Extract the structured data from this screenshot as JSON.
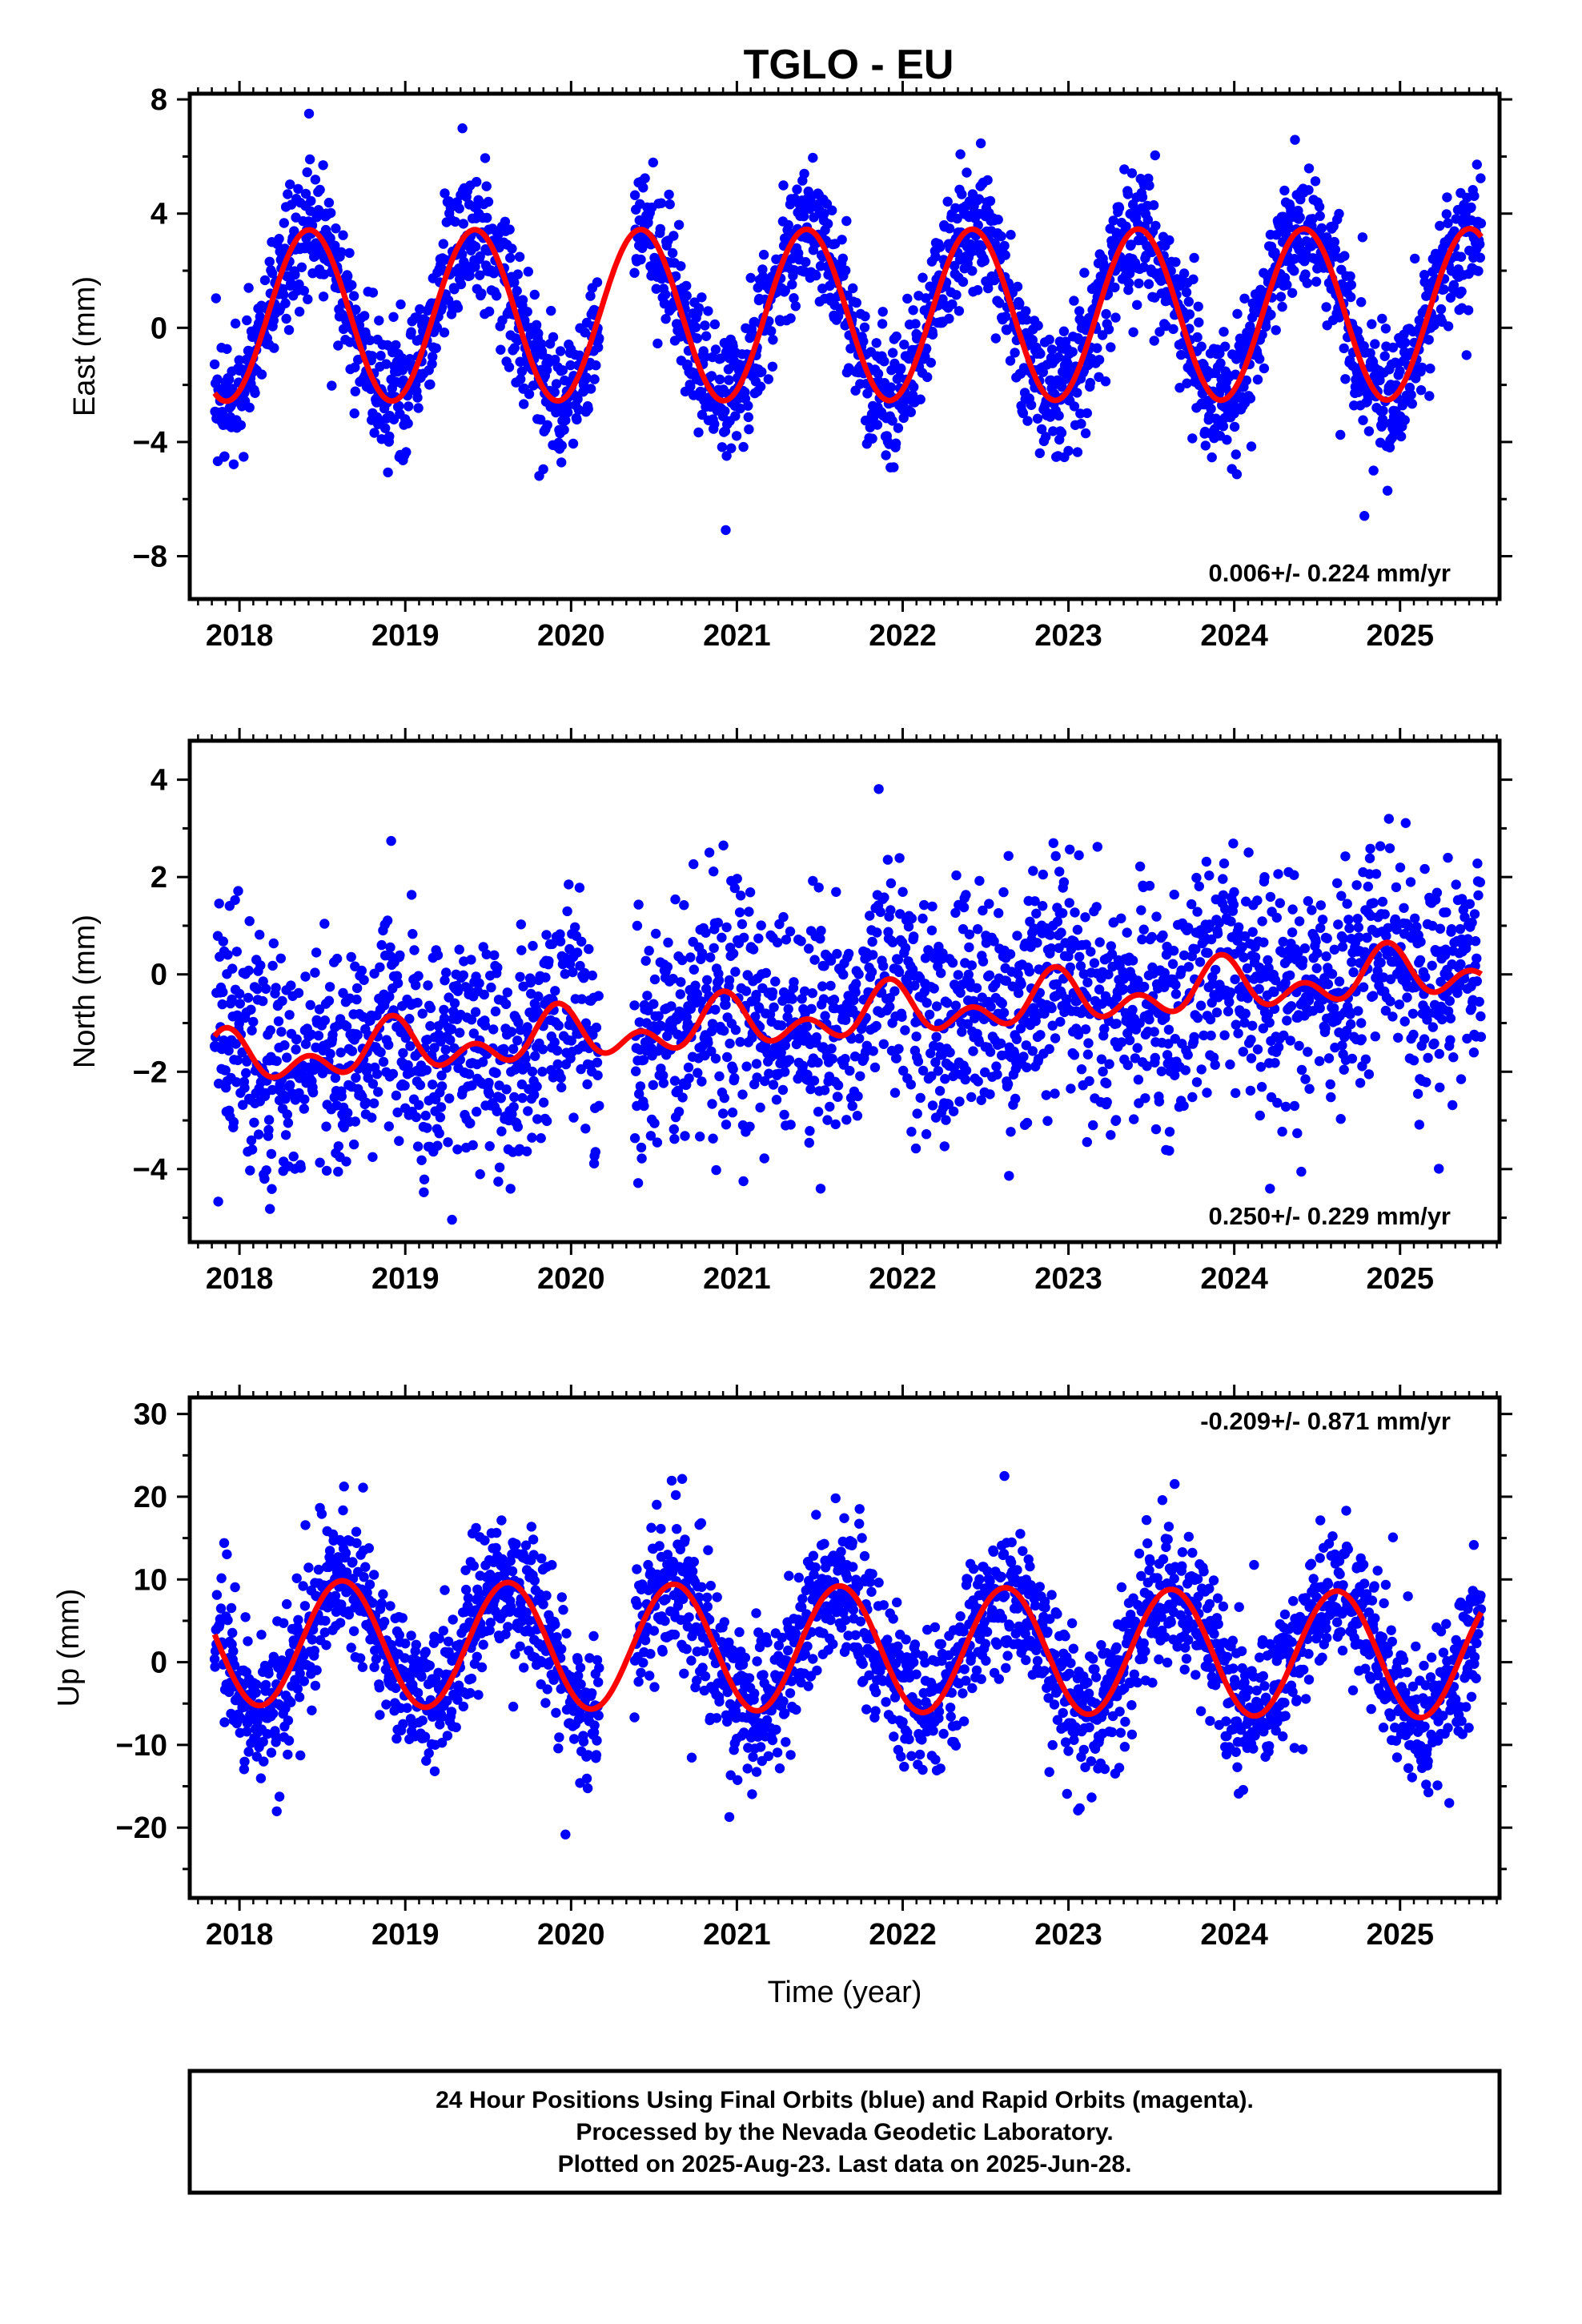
{
  "figure": {
    "title": "TGLO - EU",
    "caption_lines": [
      "24 Hour Positions Using Final Orbits (blue) and Rapid Orbits (magenta).",
      "Processed by the Nevada Geodetic Laboratory.",
      "Plotted on 2025-Aug-23. Last data on 2025-Jun-28."
    ]
  },
  "colors": {
    "final_orbits": "#0000ff",
    "rapid_orbits": "#ff00ff",
    "model_fit": "#ff0000",
    "frame": "#000000"
  },
  "chart_data": [
    {
      "type": "scatter",
      "component": "east",
      "title": "",
      "xlabel": "",
      "ylabel": "East (mm)",
      "xlim": [
        2017.7,
        2025.6
      ],
      "ylim": [
        -9.5,
        8.2
      ],
      "xticks": [
        2018,
        2019,
        2020,
        2021,
        2022,
        2023,
        2024,
        2025
      ],
      "yticks": [
        -8,
        -4,
        0,
        4,
        8
      ],
      "rate_annotation": "0.006+/- 0.224 mm/yr",
      "rate_position": "bottom-right",
      "data_span": [
        2017.85,
        2025.49
      ],
      "model": {
        "offset": 0.45,
        "rate": 0.006,
        "annual_amplitude": 3.0,
        "annual_peak": 2018.42,
        "semiannual_amplitude": 0.0,
        "semiannual_peak": 2018.0
      },
      "scatter_sd": 1.15,
      "series": [
        {
          "name": "",
          "kind": "points",
          "color": "#0000ff"
        },
        {
          "name": "",
          "kind": "model",
          "color": "#ff0000"
        }
      ]
    },
    {
      "type": "scatter",
      "component": "north",
      "title": "",
      "xlabel": "",
      "ylabel": "North (mm)",
      "xlim": [
        2017.7,
        2025.6
      ],
      "ylim": [
        -5.5,
        4.8
      ],
      "xticks": [
        2018,
        2019,
        2020,
        2021,
        2022,
        2023,
        2024,
        2025
      ],
      "yticks": [
        -4,
        -2,
        0,
        2,
        4
      ],
      "rate_annotation": "0.250+/- 0.229 mm/yr",
      "rate_position": "bottom-right",
      "data_span": [
        2017.85,
        2025.49
      ],
      "model": {
        "offset": -0.85,
        "rate": 0.25,
        "annual_amplitude": 0.35,
        "annual_peak": 2018.92,
        "semiannual_amplitude": 0.35,
        "semiannual_peak": 2018.42
      },
      "scatter_sd": 1.15,
      "series": [
        {
          "name": "",
          "kind": "points",
          "color": "#0000ff"
        },
        {
          "name": "",
          "kind": "model",
          "color": "#ff0000"
        }
      ]
    },
    {
      "type": "scatter",
      "component": "up",
      "title": "",
      "xlabel": "Time (year)",
      "ylabel": "Up (mm)",
      "xlim": [
        2017.7,
        2025.6
      ],
      "ylim": [
        -28.5,
        32
      ],
      "xticks": [
        2018,
        2019,
        2020,
        2021,
        2022,
        2023,
        2024,
        2025
      ],
      "yticks": [
        -20,
        -10,
        0,
        10,
        20,
        30
      ],
      "rate_annotation": "-0.209+/- 0.871 mm/yr",
      "rate_position": "top-right",
      "data_span": [
        2017.85,
        2025.49
      ],
      "model": {
        "offset": 1.6,
        "rate": -0.209,
        "annual_amplitude": 7.6,
        "annual_peak": 2018.62,
        "semiannual_amplitude": 0.0,
        "semiannual_peak": 2018.0
      },
      "scatter_sd": 4.4,
      "series": [
        {
          "name": "",
          "kind": "points",
          "color": "#0000ff"
        },
        {
          "name": "",
          "kind": "model",
          "color": "#ff0000"
        }
      ]
    }
  ]
}
